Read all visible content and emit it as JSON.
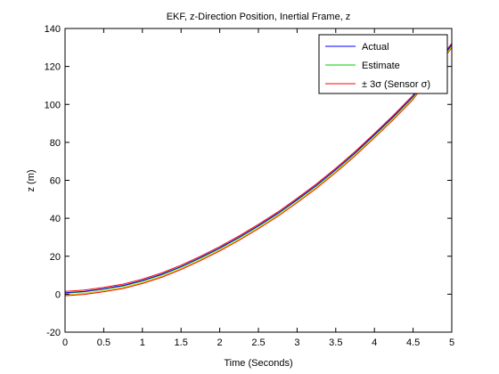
{
  "chart_data": {
    "type": "line",
    "title": "EKF, z-Direction Position, Inertial Frame, z",
    "xlabel": "Time (Seconds)",
    "ylabel": "z (m)",
    "xlim": [
      0,
      5
    ],
    "ylim": [
      -20,
      140
    ],
    "xticks": [
      0,
      0.5,
      1,
      1.5,
      2,
      2.5,
      3,
      3.5,
      4,
      4.5,
      5
    ],
    "yticks": [
      -20,
      0,
      20,
      40,
      60,
      80,
      100,
      120,
      140
    ],
    "xtick_labels": [
      "0",
      "0.5",
      "1",
      "1.5",
      "2",
      "2.5",
      "3",
      "3.5",
      "4",
      "4.5",
      "5"
    ],
    "ytick_labels": [
      "-20",
      "0",
      "20",
      "40",
      "60",
      "80",
      "100",
      "120",
      "140"
    ],
    "grid": false,
    "legend_position": "top-right",
    "x": [
      0,
      0.25,
      0.5,
      0.75,
      1,
      1.25,
      1.5,
      1.75,
      2,
      2.25,
      2.5,
      2.75,
      3,
      3.25,
      3.5,
      3.75,
      4,
      4.25,
      4.5,
      4.75,
      5
    ],
    "series": [
      {
        "name": "Actual",
        "color": "#0000ff",
        "values": [
          0.8,
          1.5,
          2.9,
          4.6,
          7.2,
          10.5,
          14.6,
          19.3,
          24.4,
          30.0,
          36.1,
          42.6,
          49.8,
          57.4,
          65.7,
          74.5,
          84.0,
          93.8,
          104.2,
          118.0,
          131.5
        ]
      },
      {
        "name": "Estimate",
        "color": "#00cc00",
        "values": [
          0.5,
          1.2,
          2.6,
          4.3,
          6.9,
          10.2,
          14.3,
          19.0,
          24.1,
          29.7,
          35.8,
          42.3,
          49.5,
          57.1,
          65.4,
          74.2,
          83.7,
          93.5,
          103.9,
          117.7,
          131.2
        ]
      },
      {
        "name": "± 3σ (Sensor σ)",
        "color": "#ff0000",
        "values_upper": [
          1.5,
          2.2,
          3.6,
          5.3,
          7.9,
          11.2,
          15.3,
          20.0,
          25.1,
          30.7,
          36.8,
          43.3,
          50.5,
          58.1,
          66.4,
          75.2,
          84.7,
          94.5,
          104.9,
          118.7,
          132.2
        ],
        "values_lower": [
          -0.8,
          -0.1,
          1.3,
          3.0,
          5.6,
          8.9,
          13.0,
          17.7,
          22.8,
          28.4,
          34.5,
          41.0,
          48.2,
          55.8,
          64.1,
          72.9,
          82.4,
          92.2,
          102.6,
          116.4,
          129.9
        ]
      }
    ],
    "extra_line": {
      "color": "#cccc00",
      "values": [
        -0.3,
        0.4,
        1.8,
        3.5,
        6.1,
        9.4,
        13.5,
        18.2,
        23.3,
        28.9,
        35.0,
        41.5,
        48.7,
        56.3,
        64.6,
        73.4,
        82.9,
        92.7,
        103.1,
        116.9,
        130.4
      ]
    }
  }
}
